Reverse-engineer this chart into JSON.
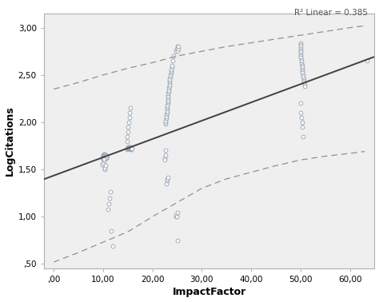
{
  "title": "",
  "xlabel": "ImpactFactor",
  "ylabel": "LogCitations",
  "r2_label": "R² Linear = 0.385",
  "xlim": [
    -2,
    65
  ],
  "ylim": [
    0.45,
    3.15
  ],
  "xticks": [
    0.0,
    10.0,
    20.0,
    30.0,
    40.0,
    50.0,
    60.0
  ],
  "yticks": [
    0.5,
    1.0,
    1.5,
    2.0,
    2.5,
    3.0
  ],
  "xtick_labels": [
    ",00",
    "10,00",
    "20,00",
    "30,00",
    "40,00",
    "50,00",
    "60,00"
  ],
  "ytick_labels": [
    ",50",
    "1,00",
    "1,50",
    "2,00",
    "2,50",
    "3,00"
  ],
  "scatter_edge": "#8c9aaa",
  "line_color": "#404040",
  "ci_color": "#909090",
  "background": "#efefef",
  "reg_slope": 0.01935,
  "reg_intercept": 1.435,
  "scatter_x": [
    9.8,
    9.9,
    10.0,
    10.0,
    10.1,
    10.1,
    10.1,
    10.2,
    10.2,
    10.2,
    10.3,
    10.3,
    10.3,
    10.4,
    10.4,
    10.5,
    10.5,
    10.5,
    10.6,
    10.6,
    10.7,
    10.7,
    10.7,
    9.9,
    10.0,
    10.1,
    10.2,
    10.3,
    10.4,
    10.5,
    10.9,
    11.1,
    11.3,
    11.5,
    11.7,
    11.9,
    14.8,
    14.9,
    15.0,
    15.0,
    15.1,
    15.1,
    15.2,
    15.2,
    15.2,
    15.3,
    15.3,
    15.4,
    15.4,
    15.5,
    15.5,
    15.5,
    15.6,
    15.6,
    15.6,
    15.7,
    15.7,
    15.7,
    15.8,
    14.8,
    14.9,
    15.0,
    15.1,
    15.2,
    15.3,
    15.4,
    15.5,
    22.5,
    22.6,
    22.7,
    22.7,
    22.8,
    22.8,
    22.8,
    22.9,
    22.9,
    23.0,
    23.0,
    23.0,
    23.1,
    23.1,
    23.1,
    23.2,
    23.2,
    23.2,
    23.3,
    23.3,
    23.3,
    23.4,
    23.4,
    23.5,
    23.5,
    23.5,
    23.6,
    23.6,
    23.7,
    23.7,
    23.8,
    23.9,
    24.0,
    24.1,
    24.2,
    22.5,
    22.6,
    22.7,
    22.8,
    22.9,
    23.0,
    23.1,
    24.8,
    24.9,
    25.0,
    25.1,
    25.2,
    25.3,
    24.7,
    24.8,
    24.9,
    25.0,
    25.1,
    50.0,
    50.0,
    50.0,
    50.0,
    50.0,
    50.1,
    50.1,
    50.1,
    50.1,
    50.2,
    50.2,
    50.2,
    50.3,
    50.3,
    50.3,
    50.4,
    50.4,
    50.5,
    50.5,
    50.6,
    50.6,
    50.7,
    50.8,
    50.9,
    50.0,
    50.1,
    50.2,
    50.3,
    50.4,
    50.5,
    63.5
  ],
  "scatter_y": [
    1.62,
    1.63,
    1.64,
    1.65,
    1.63,
    1.65,
    1.66,
    1.64,
    1.65,
    1.66,
    1.64,
    1.65,
    1.66,
    1.64,
    1.65,
    1.63,
    1.64,
    1.65,
    1.63,
    1.64,
    1.62,
    1.63,
    1.64,
    1.55,
    1.57,
    1.59,
    1.61,
    1.5,
    1.52,
    1.54,
    1.08,
    1.14,
    1.2,
    1.26,
    0.85,
    0.69,
    1.71,
    1.72,
    1.73,
    1.74,
    1.72,
    1.73,
    1.72,
    1.73,
    1.74,
    1.72,
    1.73,
    1.73,
    1.74,
    1.72,
    1.73,
    1.74,
    1.71,
    1.72,
    1.73,
    1.71,
    1.72,
    1.73,
    1.72,
    1.8,
    1.85,
    1.9,
    1.95,
    2.0,
    2.05,
    2.1,
    2.15,
    1.62,
    1.98,
    2.0,
    2.02,
    2.04,
    2.06,
    2.08,
    2.1,
    2.12,
    2.14,
    2.16,
    2.18,
    2.2,
    2.22,
    2.24,
    2.26,
    2.28,
    2.3,
    2.32,
    2.34,
    2.36,
    2.38,
    2.4,
    2.42,
    2.44,
    2.46,
    2.48,
    2.5,
    2.52,
    2.54,
    2.56,
    2.58,
    2.6,
    2.65,
    2.7,
    1.6,
    1.65,
    1.7,
    1.35,
    1.38,
    1.4,
    1.42,
    2.75,
    2.78,
    2.8,
    2.75,
    2.78,
    2.8,
    1.0,
    1.02,
    1.0,
    0.75,
    1.04,
    2.84,
    2.82,
    2.8,
    2.78,
    2.76,
    2.74,
    2.72,
    2.7,
    2.68,
    2.66,
    2.64,
    2.62,
    2.6,
    2.58,
    2.56,
    2.54,
    2.52,
    2.5,
    2.48,
    2.46,
    2.44,
    2.42,
    2.4,
    2.38,
    2.2,
    2.1,
    2.05,
    2.0,
    1.95,
    1.85,
    2.65
  ],
  "ci_x_fine": [
    0,
    5,
    10,
    15,
    20,
    25,
    30,
    35,
    40,
    45,
    50,
    55,
    60,
    63
  ],
  "ci_upper": [
    2.35,
    2.42,
    2.5,
    2.57,
    2.63,
    2.7,
    2.75,
    2.8,
    2.84,
    2.88,
    2.92,
    2.96,
    3.0,
    3.02
  ],
  "ci_lower": [
    0.52,
    0.62,
    0.73,
    0.84,
    1.0,
    1.15,
    1.3,
    1.4,
    1.47,
    1.54,
    1.6,
    1.64,
    1.67,
    1.69
  ]
}
